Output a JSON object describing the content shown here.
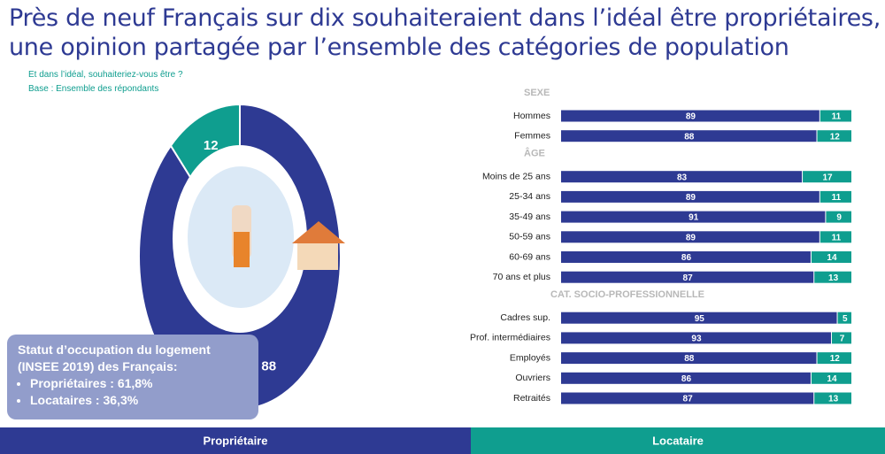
{
  "title": "Près de neuf Français sur dix souhaiteraient dans l’idéal être propriétaires, une opinion partagée par l’ensemble des catégories de population",
  "question": "Et dans l’idéal, souhaiteriez-vous être ?",
  "base": "Base : Ensemble des répondants",
  "info_box": {
    "title": "Statut d’occupation du logement (INSEE 2019) des Français:",
    "items": [
      "Propriétaires : 61,8%",
      "Locataires : 36,3%"
    ]
  },
  "chart_data": [
    {
      "type": "pie",
      "donut": true,
      "categories": [
        "Propriétaire",
        "Locataire"
      ],
      "values": [
        88,
        12
      ],
      "colors": [
        "#2e3a93",
        "#0f9e8f"
      ]
    },
    {
      "type": "bar",
      "orientation": "horizontal",
      "stacked": true,
      "title": "SEXE",
      "categories": [
        "Hommes",
        "Femmes"
      ],
      "series": [
        {
          "color": "#2e3a93",
          "values": [
            89,
            88
          ]
        },
        {
          "color": "#0f9e8f",
          "values": [
            11,
            12
          ]
        }
      ]
    },
    {
      "type": "bar",
      "orientation": "horizontal",
      "stacked": true,
      "title": "ÂGE",
      "categories": [
        "Moins de 25 ans",
        "25-34 ans",
        "35-49 ans",
        "50-59 ans",
        "60-69 ans",
        "70 ans et plus"
      ],
      "series": [
        {
          "color": "#2e3a93",
          "values": [
            83,
            89,
            91,
            89,
            86,
            87
          ]
        },
        {
          "color": "#0f9e8f",
          "values": [
            17,
            11,
            9,
            11,
            14,
            13
          ]
        }
      ]
    },
    {
      "type": "bar",
      "orientation": "horizontal",
      "stacked": true,
      "title": "CAT. SOCIO-PROFESSIONNELLE",
      "categories": [
        "Cadres sup.",
        "Prof. intermédiaires",
        "Employés",
        "Ouvriers",
        "Retraités"
      ],
      "series": [
        {
          "color": "#2e3a93",
          "values": [
            95,
            93,
            88,
            86,
            87
          ]
        },
        {
          "color": "#0f9e8f",
          "values": [
            5,
            7,
            12,
            14,
            13
          ]
        }
      ]
    }
  ]
}
